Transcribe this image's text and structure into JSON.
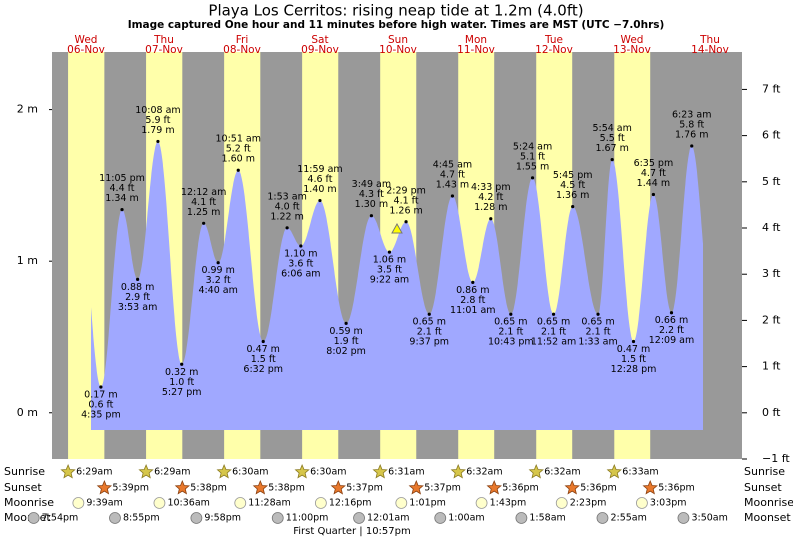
{
  "chart_data": {
    "type": "area",
    "title": "Playa Los Cerritos: rising  neap tide at 1.2m (4.0ft)",
    "subtitle": "Image captured One hour and 11 minutes before high water. Times are MST (UTC −7.0hrs)",
    "days": [
      {
        "weekday": "Wed",
        "date": "06-Nov"
      },
      {
        "weekday": "Thu",
        "date": "07-Nov"
      },
      {
        "weekday": "Fri",
        "date": "08-Nov"
      },
      {
        "weekday": "Sat",
        "date": "09-Nov"
      },
      {
        "weekday": "Sun",
        "date": "10-Nov"
      },
      {
        "weekday": "Mon",
        "date": "11-Nov"
      },
      {
        "weekday": "Tue",
        "date": "12-Nov"
      },
      {
        "weekday": "Wed",
        "date": "13-Nov"
      },
      {
        "weekday": "Thu",
        "date": "14-Nov"
      }
    ],
    "day_label_color": "#cc0000",
    "day_color": "#ffffaa",
    "night_color": "#999999",
    "series": [
      {
        "color": "#a0a8ff",
        "times": [
          "4:35 pm",
          "11:05 pm",
          "3:53 am",
          "10:08 am",
          "5:27 pm",
          "12:12 am",
          "4:40 am",
          "10:51 am",
          "6:32 pm",
          "1:53 am",
          "6:06 am",
          "11:59 am",
          "8:02 pm",
          "3:49 am",
          "9:22 am",
          "2:29 pm",
          "9:37 pm",
          "4:45 am",
          "11:01 am",
          "4:33 pm",
          "10:43 pm",
          "5:24 am",
          "11:52 am",
          "5:45 pm",
          "1:33 am",
          "5:54 am",
          "12:28 pm",
          "6:35 pm",
          "12:09 am",
          "6:23 am"
        ],
        "values": [
          0.17,
          1.34,
          0.88,
          1.79,
          0.32,
          1.25,
          0.99,
          1.6,
          0.47,
          1.22,
          1.1,
          1.4,
          0.59,
          1.3,
          1.06,
          1.26,
          0.65,
          1.43,
          0.86,
          1.28,
          0.65,
          1.55,
          0.65,
          1.36,
          0.65,
          1.67,
          0.47,
          1.44,
          0.66,
          1.76
        ],
        "value_labels": [
          "0.17 m",
          "1.34 m",
          "0.88 m",
          "1.79 m",
          "0.32 m",
          "1.25 m",
          "0.99 m",
          "1.60 m",
          "0.47 m",
          "1.22 m",
          "1.10 m",
          "1.40 m",
          "0.59 m",
          "1.30 m",
          "1.06 m",
          "1.26 m",
          "0.65 m",
          "1.43 m",
          "0.86 m",
          "1.28 m",
          "0.65 m",
          "1.55 m",
          "0.65 m",
          "1.36 m",
          "0.65 m",
          "1.67 m",
          "0.47 m",
          "1.44 m",
          "0.66 m",
          "1.76 m"
        ],
        "feet_labels": [
          "0.6 ft",
          "4.4 ft",
          "2.9 ft",
          "5.9 ft",
          "1.0 ft",
          "4.1 ft",
          "3.2 ft",
          "5.2 ft",
          "1.5 ft",
          "4.0 ft",
          "3.6 ft",
          "4.6 ft",
          "1.9 ft",
          "4.3 ft",
          "3.5 ft",
          "4.1 ft",
          "2.1 ft",
          "4.7 ft",
          "2.8 ft",
          "4.2 ft",
          "2.1 ft",
          "5.1 ft",
          "2.1 ft",
          "4.5 ft",
          "2.1 ft",
          "5.5 ft",
          "1.5 ft",
          "4.7 ft",
          "2.2 ft",
          "5.8 ft"
        ]
      }
    ],
    "ylim": [
      -0.305,
      2.38
    ],
    "yticks": [
      {
        "value": 0,
        "label": "0 m"
      },
      {
        "value": 1,
        "label": "1 m"
      },
      {
        "value": 2,
        "label": "2 m"
      }
    ],
    "y2lim": [
      -1,
      7.81
    ],
    "y2ticks": [
      {
        "value": -1,
        "label": "−1 ft"
      },
      {
        "value": 0,
        "label": "0 ft"
      },
      {
        "value": 1,
        "label": "1 ft"
      },
      {
        "value": 2,
        "label": "2 ft"
      },
      {
        "value": 3,
        "label": "3 ft"
      },
      {
        "value": 4,
        "label": "4 ft"
      },
      {
        "value": 5,
        "label": "5 ft"
      },
      {
        "value": 6,
        "label": "6 ft"
      },
      {
        "value": 7,
        "label": "7 ft"
      }
    ]
  },
  "astro": {
    "rows": [
      {
        "label": "Sunrise",
        "times": [
          "6:29am",
          "6:29am",
          "6:30am",
          "6:30am",
          "6:31am",
          "6:32am",
          "6:32am",
          "6:33am"
        ]
      },
      {
        "label": "Sunset",
        "times": [
          "5:39pm",
          "5:38pm",
          "5:38pm",
          "5:37pm",
          "5:37pm",
          "5:36pm",
          "5:36pm",
          "5:36pm"
        ]
      },
      {
        "label": "Moonrise",
        "times": [
          "9:39am",
          "10:36am",
          "11:28am",
          "12:16pm",
          "1:01pm",
          "1:43pm",
          "2:23pm",
          "3:03pm"
        ]
      },
      {
        "label": "Moonset",
        "times": [
          "7:54pm",
          "8:55pm",
          "9:58pm",
          "11:00pm",
          "12:01am",
          "1:00am",
          "1:58am",
          "2:55am",
          "3:50am"
        ]
      }
    ],
    "moon_phase": "First Quarter | 10:57pm"
  }
}
